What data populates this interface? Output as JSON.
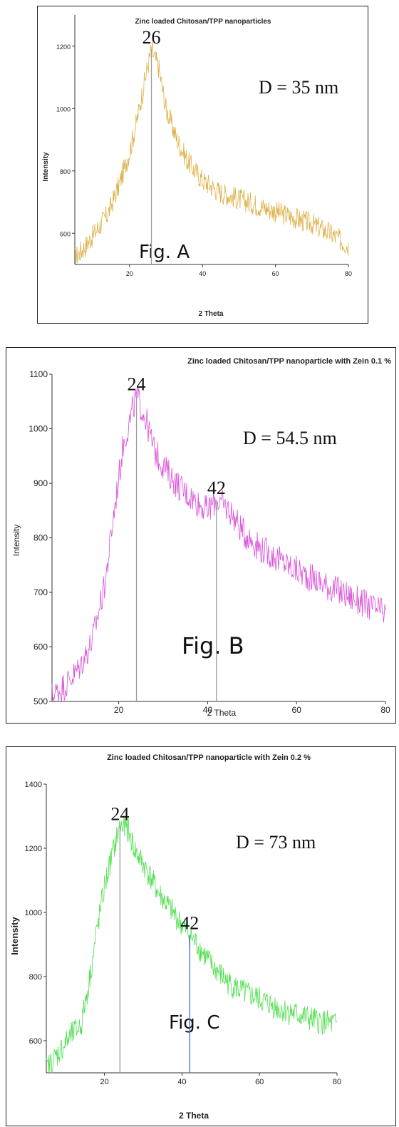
{
  "chart_data": [
    {
      "type": "line",
      "title": "Zinc loaded Chitosan/TPP nanoparticles",
      "xlabel": "2 Theta",
      "ylabel": "Intensity",
      "xlim": [
        5,
        80
      ],
      "ylim": [
        500,
        1300
      ],
      "xticks": [
        20,
        40,
        60,
        80
      ],
      "yticks": [
        600,
        800,
        1000,
        1200
      ],
      "color": "#d9a935",
      "series": [
        {
          "x": [
            5,
            8,
            11,
            14,
            17,
            20,
            22,
            24,
            26,
            28,
            30,
            33,
            36,
            40,
            45,
            50,
            55,
            60,
            65,
            70,
            75,
            80
          ],
          "values": [
            520,
            560,
            610,
            660,
            750,
            860,
            960,
            1080,
            1190,
            1130,
            1000,
            900,
            830,
            770,
            730,
            710,
            690,
            670,
            650,
            630,
            600,
            560
          ]
        }
      ],
      "peaks": [
        {
          "x": 26,
          "label": "26"
        }
      ],
      "annotations": {
        "crystallite_size": "D = 35 nm",
        "figure_label": "Fig. A"
      }
    },
    {
      "type": "line",
      "title": "Zinc loaded Chitosan/TPP nanoparticle with Zein 0.1 %",
      "xlabel": "2 Theta",
      "ylabel": "Intensity",
      "xlim": [
        5,
        80
      ],
      "ylim": [
        500,
        1100
      ],
      "xticks": [
        20,
        40,
        60,
        80
      ],
      "yticks": [
        500,
        600,
        700,
        800,
        900,
        1000,
        1100
      ],
      "color": "#d43fd4",
      "series": [
        {
          "x": [
            5,
            8,
            11,
            14,
            17,
            19,
            21,
            23,
            24,
            26,
            28,
            31,
            34,
            37,
            40,
            42,
            45,
            48,
            52,
            56,
            60,
            65,
            70,
            75,
            80
          ],
          "values": [
            510,
            530,
            560,
            610,
            720,
            850,
            970,
            1030,
            1060,
            1020,
            960,
            920,
            890,
            870,
            850,
            870,
            850,
            810,
            780,
            760,
            740,
            720,
            700,
            680,
            660
          ]
        }
      ],
      "peaks": [
        {
          "x": 24,
          "label": "24"
        },
        {
          "x": 42,
          "label": "42"
        }
      ],
      "annotations": {
        "crystallite_size": "D = 54.5 nm",
        "figure_label": "Fig. B"
      }
    },
    {
      "type": "line",
      "title": "Zinc loaded Chitosan/TPP nanoparticle with Zein 0.2 %",
      "xlabel": "2 Theta",
      "ylabel": "Intensity",
      "xlim": [
        5,
        80
      ],
      "ylim": [
        500,
        1400
      ],
      "xticks": [
        20,
        40,
        60,
        80
      ],
      "yticks": [
        600,
        800,
        1000,
        1200,
        1400
      ],
      "color": "#3fdc3f",
      "series": [
        {
          "x": [
            5,
            8,
            11,
            14,
            16,
            18,
            20,
            22,
            24,
            26,
            28,
            31,
            34,
            37,
            40,
            42,
            45,
            48,
            52,
            56,
            60,
            65,
            70,
            75,
            80
          ],
          "values": [
            510,
            560,
            610,
            650,
            780,
            940,
            1080,
            1180,
            1270,
            1260,
            1190,
            1130,
            1060,
            1010,
            960,
            930,
            880,
            830,
            780,
            750,
            730,
            700,
            680,
            660,
            650
          ]
        }
      ],
      "peaks": [
        {
          "x": 24,
          "label": "24",
          "line_color": "#9a9a9a"
        },
        {
          "x": 42,
          "label": "42",
          "line_color": "#3a6fc4"
        }
      ],
      "annotations": {
        "crystallite_size": "D = 73 nm",
        "figure_label": "Fig. C"
      }
    }
  ]
}
